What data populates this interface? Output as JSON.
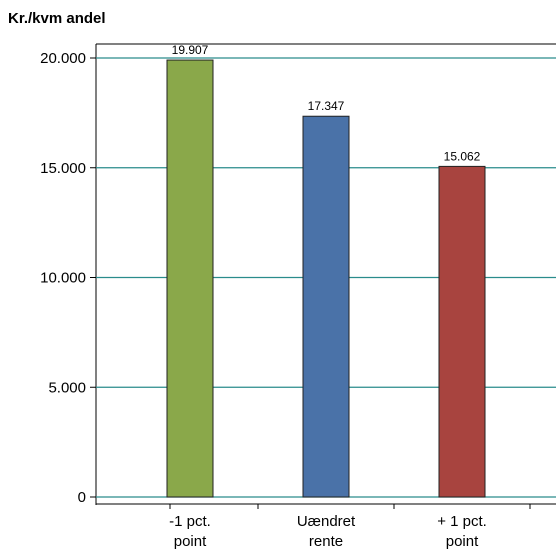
{
  "chart_data": {
    "type": "bar",
    "title": "",
    "ylabel": "Kr./kvm andel",
    "xlabel": "",
    "categories": [
      [
        "-1 pct.",
        "point"
      ],
      [
        "Uændret",
        "rente"
      ],
      [
        "+ 1 pct.",
        "point"
      ]
    ],
    "values": [
      19907,
      17347,
      15062
    ],
    "value_labels": [
      "19.907",
      "17.347",
      "15.062"
    ],
    "bar_colors": [
      "#8aa84a",
      "#4a72a8",
      "#a8443f"
    ],
    "ylim": [
      0,
      20000
    ],
    "yticks": [
      0,
      5000,
      10000,
      15000,
      20000
    ],
    "ytick_labels": [
      "0",
      "5.000",
      "10.000",
      "15.000",
      "20.000"
    ],
    "grid": true,
    "grid_color": "#2a8c8c"
  }
}
